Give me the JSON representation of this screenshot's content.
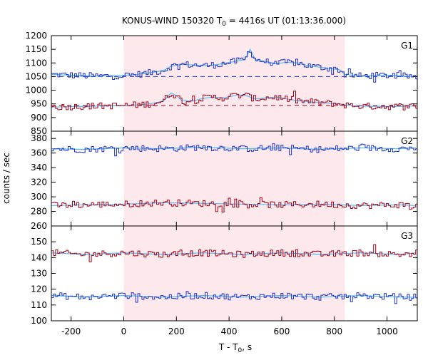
{
  "chart_data": {
    "type": "line",
    "title_main": "KONUS-WIND 150320 T",
    "title_sub": "0",
    "title_rest": " = 4416s UT (01:13:36.000)",
    "xlabel_main": "T - T",
    "xlabel_sub": "0",
    "xlabel_rest": ", s",
    "ylabel": "counts / sec",
    "xlim": [
      -275,
      1115
    ],
    "xticks": [
      -200,
      0,
      200,
      400,
      600,
      800,
      1000
    ],
    "xtick_labels": [
      "-200",
      "0",
      "200",
      "400",
      "600",
      "800",
      "1000"
    ],
    "highlight_interval": [
      0,
      840
    ],
    "colors": {
      "blue": "#2233cc",
      "red": "#a40018",
      "fit": "#55bbee",
      "highlight": "#fde9ec"
    },
    "panels": [
      {
        "name": "G1",
        "ylim": [
          850,
          1200
        ],
        "yticks": [
          850,
          900,
          950,
          1000,
          1050,
          1100,
          1150,
          1200
        ],
        "ytick_labels": [
          "850",
          "900",
          "950",
          "1000",
          "1050",
          "1100",
          "1150",
          "1200"
        ],
        "background_levels": [
          1050,
          944
        ],
        "series": [
          {
            "color": "blue",
            "x": [
              -275,
              -200,
              -100,
              0,
              50,
              100,
              150,
              180,
              220,
              260,
              300,
              340,
              380,
              420,
              460,
              480,
              500,
              540,
              580,
              620,
              660,
              700,
              740,
              780,
              820,
              840,
              900,
              1000,
              1110
            ],
            "y": [
              1058,
              1055,
              1052,
              1054,
              1058,
              1064,
              1072,
              1088,
              1095,
              1093,
              1090,
              1092,
              1098,
              1105,
              1112,
              1150,
              1112,
              1105,
              1098,
              1102,
              1100,
              1090,
              1085,
              1080,
              1075,
              1058,
              1052,
              1055,
              1050
            ]
          },
          {
            "color": "red",
            "x": [
              -275,
              -200,
              -100,
              0,
              50,
              100,
              150,
              180,
              200,
              220,
              260,
              300,
              340,
              380,
              420,
              460,
              500,
              540,
              580,
              620,
              660,
              700,
              740,
              780,
              820,
              840,
              900,
              1000,
              1110
            ],
            "y": [
              938,
              940,
              942,
              944,
              946,
              950,
              960,
              990,
              980,
              962,
              960,
              970,
              975,
              972,
              980,
              982,
              968,
              972,
              975,
              968,
              962,
              958,
              955,
              952,
              950,
              946,
              942,
              940,
              942
            ]
          }
        ]
      },
      {
        "name": "G2",
        "ylim": [
          260,
          390
        ],
        "yticks": [
          260,
          280,
          300,
          320,
          340,
          360,
          380
        ],
        "ytick_labels": [
          "260",
          "280",
          "300",
          "320",
          "340",
          "360",
          "380"
        ],
        "background_levels": [],
        "series": [
          {
            "color": "blue",
            "x": [
              -275,
              -150,
              0,
              150,
              300,
              450,
              600,
              750,
              900,
              1050,
              1110
            ],
            "y": [
              366,
              365,
              367,
              366,
              368,
              366,
              367,
              365,
              367,
              366,
              367
            ]
          },
          {
            "color": "red",
            "x": [
              -275,
              -150,
              0,
              150,
              300,
              450,
              600,
              750,
              900,
              1050,
              1110
            ],
            "y": [
              288,
              289,
              290,
              292,
              291,
              290,
              289,
              290,
              288,
              289,
              288
            ]
          }
        ]
      },
      {
        "name": "G3",
        "ylim": [
          100,
          160
        ],
        "yticks": [
          100,
          110,
          120,
          130,
          140,
          150
        ],
        "ytick_labels": [
          "100",
          "110",
          "120",
          "130",
          "140",
          "150"
        ],
        "background_levels": [],
        "series": [
          {
            "color": "red",
            "x": [
              -275,
              -150,
              0,
              150,
              300,
              450,
              600,
              750,
              900,
              1050,
              1110
            ],
            "y": [
              143,
              142,
              143,
              142,
              143,
              142,
              143,
              142,
              143,
              142,
              143
            ]
          },
          {
            "color": "blue",
            "x": [
              -275,
              -150,
              0,
              150,
              300,
              450,
              600,
              750,
              900,
              1050,
              1110
            ],
            "y": [
              116,
              115,
              116,
              115,
              116,
              115,
              116,
              115,
              116,
              115,
              115
            ]
          }
        ]
      }
    ]
  }
}
